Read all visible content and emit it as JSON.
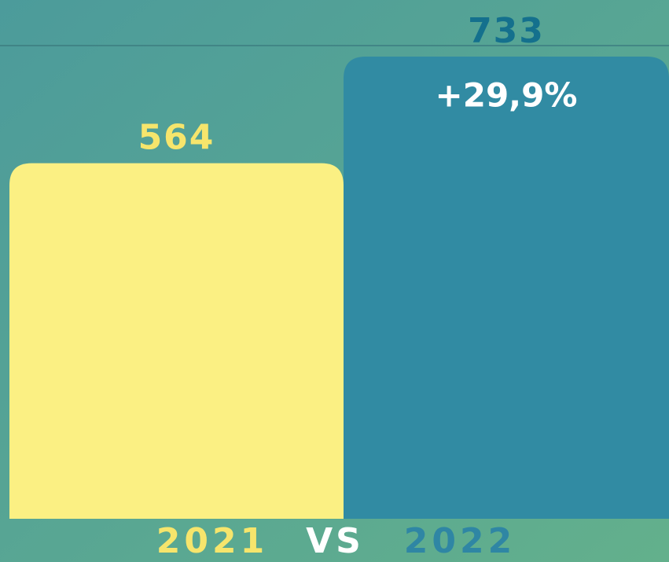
{
  "chart_data": {
    "type": "bar",
    "categories": [
      "2021",
      "2022"
    ],
    "values": [
      564,
      733
    ],
    "colors": [
      "#fbf083",
      "#318ba3"
    ],
    "label_colors": [
      "#f6e56c",
      "#14708d"
    ],
    "category_colors": [
      "#f6e56c",
      "#2f86a4"
    ],
    "annotation": "+29,9%",
    "separator": "VS"
  }
}
